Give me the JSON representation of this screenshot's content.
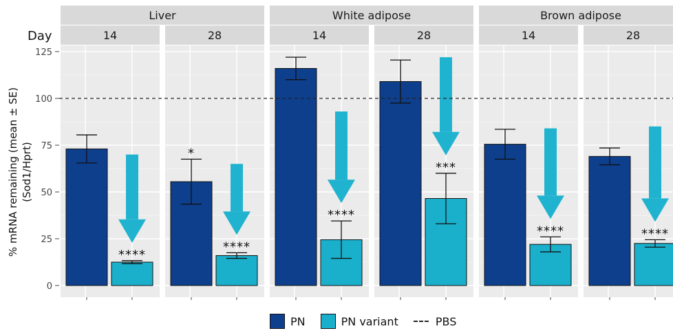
{
  "chart_data": {
    "type": "bar",
    "ylabel": "% mRNA remaining (mean ± SE)",
    "ylabel2": "(Sod1/Hprt)",
    "facet_row_label": "Day",
    "ylim": [
      0,
      125
    ],
    "yticks": [
      0,
      25,
      50,
      75,
      100,
      125
    ],
    "reference_line": {
      "name": "PBS",
      "value": 100,
      "style": "dashed"
    },
    "colors": {
      "PN": "#0e3f8c",
      "PN variant": "#1ab0cc",
      "arrow": "#20b3cf",
      "panel_bg": "#ebebeb",
      "strip_bg": "#d9d9d9"
    },
    "series": [
      {
        "name": "PN"
      },
      {
        "name": "PN variant"
      }
    ],
    "tissues": [
      {
        "name": "Liver",
        "days": [
          {
            "day": "14",
            "PN": 73,
            "PN_se": 7.5,
            "PN_sig": "",
            "PN_variant": 12.5,
            "PN_variant_se": 0.8,
            "PN_variant_sig": "****",
            "arrow_from": 70
          },
          {
            "day": "28",
            "PN": 55.5,
            "PN_se": 12,
            "PN_sig": "*",
            "PN_variant": 16,
            "PN_variant_se": 1.5,
            "PN_variant_sig": "****",
            "arrow_from": 65
          }
        ]
      },
      {
        "name": "White adipose",
        "days": [
          {
            "day": "14",
            "PN": 116,
            "PN_se": 6,
            "PN_sig": "",
            "PN_variant": 24.5,
            "PN_variant_se": 10,
            "PN_variant_sig": "****",
            "arrow_from": 93
          },
          {
            "day": "28",
            "PN": 109,
            "PN_se": 11.5,
            "PN_sig": "",
            "PN_variant": 46.5,
            "PN_variant_se": 13.5,
            "PN_variant_sig": "***",
            "arrow_from": 122
          }
        ]
      },
      {
        "name": "Brown adipose",
        "days": [
          {
            "day": "14",
            "PN": 75.5,
            "PN_se": 8,
            "PN_sig": "",
            "PN_variant": 22,
            "PN_variant_se": 4,
            "PN_variant_sig": "****",
            "arrow_from": 84
          },
          {
            "day": "28",
            "PN": 69,
            "PN_se": 4.5,
            "PN_sig": "",
            "PN_variant": 22.5,
            "PN_variant_se": 2,
            "PN_variant_sig": "****",
            "arrow_from": 85
          }
        ]
      }
    ]
  },
  "legend": {
    "pn_label": "PN",
    "pn_variant_label": "PN variant",
    "pbs_label": "PBS"
  }
}
